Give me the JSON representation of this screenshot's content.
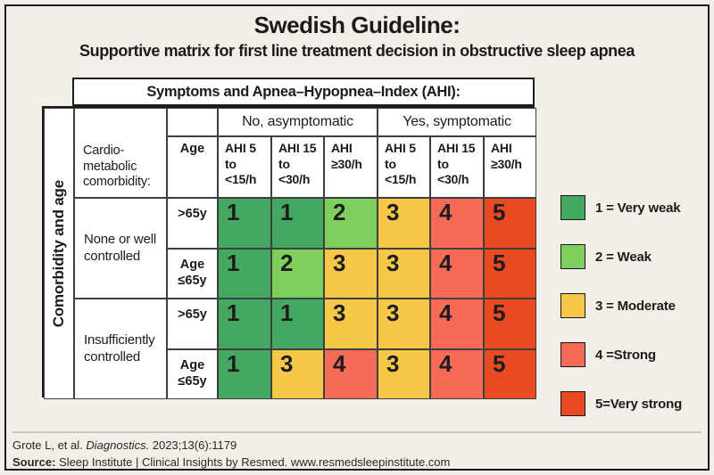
{
  "header": {
    "title": "Swedish Guideline:",
    "subtitle": "Supportive matrix for first line treatment decision in obstructive sleep apnea"
  },
  "table": {
    "top_header": "Symptoms and Apnea–Hypopnea–Index (AHI):",
    "row_axis_label": "Comorbidity and age",
    "corner_label": "Cardio-\nmetabolic\ncomorbidity:",
    "age_col_label": "Age",
    "symptom_groups": [
      {
        "label": "No, asymptomatic"
      },
      {
        "label": "Yes, symptomatic"
      }
    ],
    "ahi_col_labels": [
      "AHI 5\nto\n<15/h",
      "AHI 15\nto\n<30/h",
      "AHI\n≥30/h",
      "AHI 5\nto\n<15/h",
      "AHI 15\nto\n<30/h",
      "AHI\n≥30/h"
    ],
    "row_groups": [
      {
        "label": "None or well\ncontrolled"
      },
      {
        "label": "Insufficiently\ncontrolled"
      }
    ],
    "rows": [
      {
        "age": ">65y",
        "values": [
          1,
          1,
          2,
          3,
          4,
          5
        ]
      },
      {
        "age": "Age\n≤65y",
        "values": [
          1,
          2,
          3,
          3,
          4,
          5
        ]
      },
      {
        "age": ">65y",
        "values": [
          1,
          1,
          3,
          3,
          4,
          5
        ]
      },
      {
        "age": "Age\n≤65y",
        "values": [
          1,
          3,
          4,
          3,
          4,
          5
        ]
      }
    ]
  },
  "legend": {
    "items": [
      {
        "label": "1 = Very weak",
        "color": "#45a860"
      },
      {
        "label": "2 = Weak",
        "color": "#7ed05e"
      },
      {
        "label": "3 = Moderate",
        "color": "#f6c84a"
      },
      {
        "label": "4 =Strong",
        "color": "#f66a58"
      },
      {
        "label": "5=Very strong",
        "color": "#e94a22"
      }
    ],
    "color_by_value": {
      "1": "#45a860",
      "2": "#7ed05e",
      "3": "#f6c84a",
      "4": "#f66a58",
      "5": "#e94a22"
    }
  },
  "footer": {
    "citation_prefix": "Grote L, et al. ",
    "citation_journal": "Diagnostics.",
    "citation_suffix": " 2023;13(6):1179",
    "source_label": "Source:",
    "source_text": " Sleep Institute | Clinical Insights by Resmed. www.resmedsleepinstitute.com"
  },
  "chart_data": {
    "type": "heatmap",
    "title": "Swedish Guideline: Supportive matrix for first line treatment decision in obstructive sleep apnea",
    "column_groups": [
      "No, asymptomatic",
      "Yes, symptomatic"
    ],
    "columns": [
      "AHI 5 to <15/h",
      "AHI 15 to <30/h",
      "AHI ≥30/h",
      "AHI 5 to <15/h",
      "AHI 15 to <30/h",
      "AHI ≥30/h"
    ],
    "row_axis": "Comorbidity and age",
    "rows": [
      {
        "comorbidity": "None or well controlled",
        "age": ">65y",
        "values": [
          1,
          1,
          2,
          3,
          4,
          5
        ]
      },
      {
        "comorbidity": "None or well controlled",
        "age": "Age ≤65y",
        "values": [
          1,
          2,
          3,
          3,
          4,
          5
        ]
      },
      {
        "comorbidity": "Insufficiently controlled",
        "age": ">65y",
        "values": [
          1,
          1,
          3,
          3,
          4,
          5
        ]
      },
      {
        "comorbidity": "Insufficiently controlled",
        "age": "Age ≤65y",
        "values": [
          1,
          3,
          4,
          3,
          4,
          5
        ]
      }
    ],
    "scale": {
      "1": "Very weak",
      "2": "Weak",
      "3": "Moderate",
      "4": "Strong",
      "5": "Very strong"
    },
    "legend_position": "right"
  }
}
